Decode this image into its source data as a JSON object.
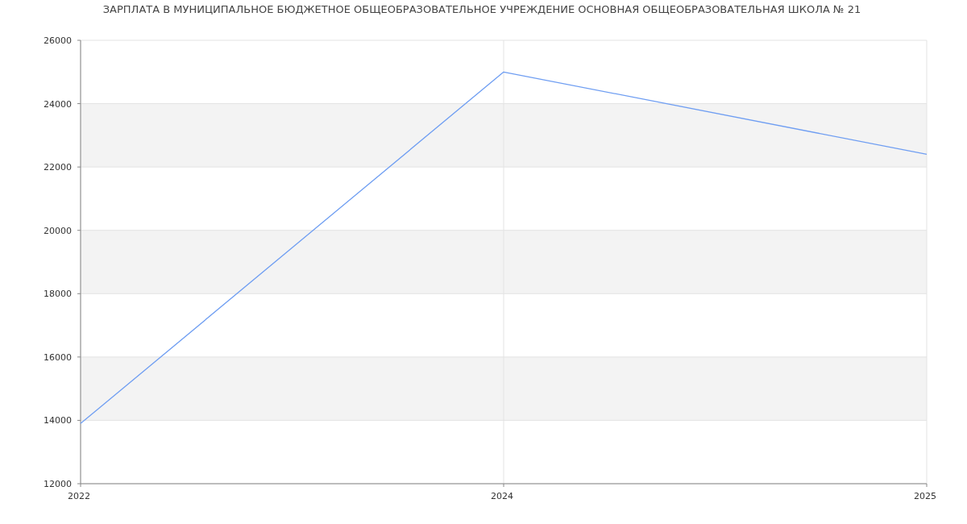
{
  "chart_data": {
    "type": "line",
    "title": "ЗАРПЛАТА В МУНИЦИПАЛЬНОЕ БЮДЖЕТНОЕ ОБЩЕОБРАЗОВАТЕЛЬНОЕ УЧРЕЖДЕНИЕ ОСНОВНАЯ ОБЩЕОБРАЗОВАТЕЛЬНАЯ ШКОЛА № 21",
    "categories": [
      "2022",
      "2024",
      "2025"
    ],
    "series": [
      {
        "color": "#6f9ef2",
        "values": [
          13900,
          25000,
          22400
        ]
      }
    ],
    "ylim": [
      12000,
      26000
    ],
    "yticks": [
      12000,
      14000,
      16000,
      18000,
      20000,
      22000,
      24000,
      26000
    ],
    "grid": true,
    "marker": "none",
    "line_style": "solid"
  }
}
